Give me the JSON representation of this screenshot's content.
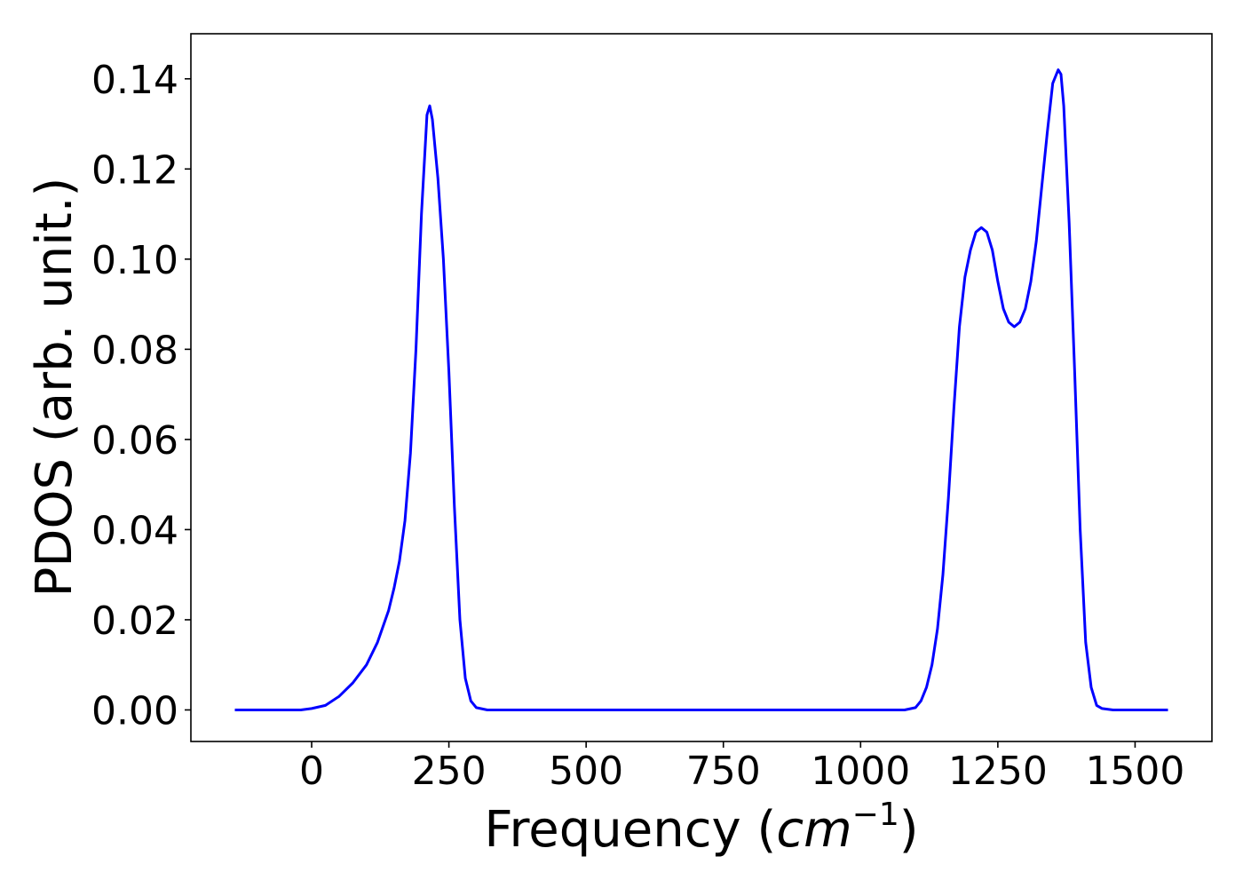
{
  "chart_data": {
    "type": "line",
    "xlabel_text": "Frequency (",
    "xlabel_math": "cm",
    "xlabel_exp": "−1",
    "xlabel_close": ")",
    "ylabel": "PDOS (arb. unit.)",
    "xlim": [
      -220,
      1640
    ],
    "ylim": [
      -0.007,
      0.15
    ],
    "x_ticks": [
      0,
      250,
      500,
      750,
      1000,
      1250,
      1500
    ],
    "x_tick_labels": [
      "0",
      "250",
      "500",
      "750",
      "1000",
      "1250",
      "1500"
    ],
    "y_ticks": [
      0.0,
      0.02,
      0.04,
      0.06,
      0.08,
      0.1,
      0.12,
      0.14
    ],
    "y_tick_labels": [
      "0.00",
      "0.02",
      "0.04",
      "0.06",
      "0.08",
      "0.10",
      "0.12",
      "0.14"
    ],
    "grid": false,
    "series": [
      {
        "color": "#0000ff",
        "x": [
          -140,
          -20,
          0,
          25,
          50,
          75,
          100,
          120,
          140,
          150,
          160,
          170,
          180,
          190,
          200,
          210,
          215,
          220,
          230,
          240,
          250,
          260,
          270,
          280,
          290,
          300,
          320,
          400,
          600,
          800,
          1000,
          1080,
          1100,
          1110,
          1120,
          1130,
          1140,
          1150,
          1160,
          1170,
          1180,
          1190,
          1200,
          1210,
          1220,
          1230,
          1240,
          1250,
          1260,
          1270,
          1280,
          1290,
          1300,
          1310,
          1320,
          1330,
          1340,
          1350,
          1360,
          1365,
          1370,
          1380,
          1390,
          1400,
          1410,
          1420,
          1430,
          1440,
          1460,
          1560
        ],
        "y": [
          0.0,
          0.0,
          0.0003,
          0.001,
          0.003,
          0.006,
          0.01,
          0.015,
          0.022,
          0.027,
          0.033,
          0.042,
          0.057,
          0.08,
          0.11,
          0.132,
          0.134,
          0.131,
          0.118,
          0.1,
          0.075,
          0.045,
          0.02,
          0.007,
          0.002,
          0.0005,
          0.0,
          0.0,
          0.0,
          0.0,
          0.0,
          0.0,
          0.0005,
          0.002,
          0.005,
          0.01,
          0.018,
          0.03,
          0.047,
          0.067,
          0.085,
          0.096,
          0.102,
          0.106,
          0.107,
          0.106,
          0.102,
          0.095,
          0.089,
          0.086,
          0.085,
          0.086,
          0.089,
          0.095,
          0.104,
          0.116,
          0.128,
          0.139,
          0.142,
          0.141,
          0.134,
          0.108,
          0.075,
          0.04,
          0.015,
          0.005,
          0.001,
          0.0003,
          0.0,
          0.0
        ]
      }
    ]
  }
}
